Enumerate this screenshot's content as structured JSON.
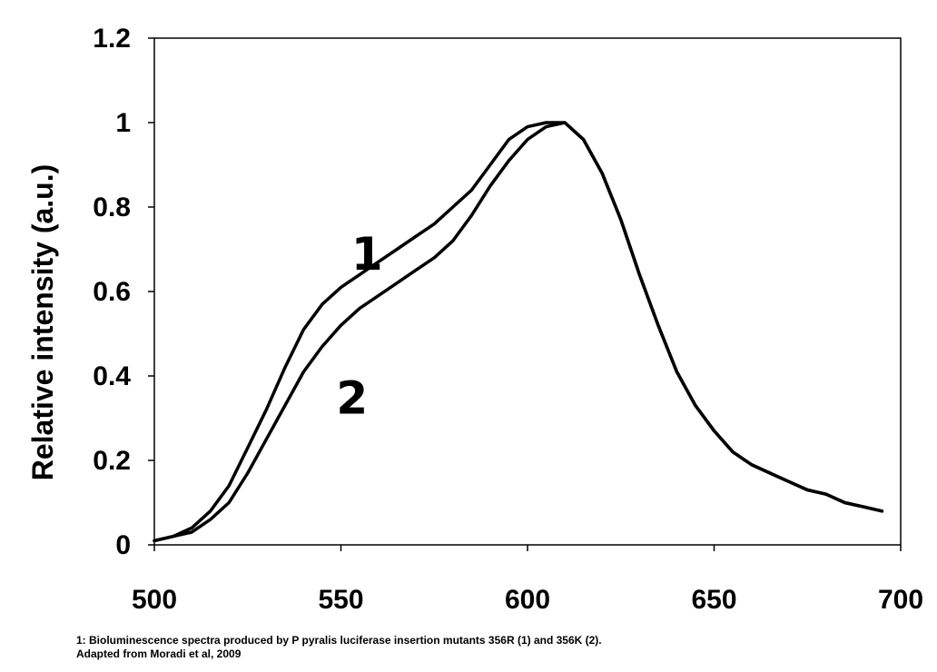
{
  "chart_data": {
    "type": "line",
    "title": "",
    "xlabel": "",
    "ylabel": "Relative intensity (a.u.)",
    "xlim": [
      500,
      700
    ],
    "ylim": [
      0,
      1.2
    ],
    "xticks": [
      500,
      550,
      600,
      650,
      700
    ],
    "yticks": [
      0,
      0.2,
      0.4,
      0.6,
      0.8,
      1,
      1.2
    ],
    "xtick_labels": [
      "500",
      "550",
      "600",
      "650",
      "700"
    ],
    "ytick_labels": [
      "0",
      "0.2",
      "0.4",
      "0.6",
      "0.8",
      "1",
      "1.2"
    ],
    "grid": false,
    "series": [
      {
        "name": "1",
        "label": "1",
        "label_at": [
          557,
          0.69
        ],
        "x": [
          500,
          505,
          510,
          515,
          520,
          525,
          530,
          535,
          540,
          545,
          550,
          555,
          560,
          565,
          570,
          575,
          580,
          585,
          590,
          595,
          600,
          605,
          610,
          615,
          620,
          625,
          630,
          635,
          640,
          645,
          650,
          655,
          660,
          665,
          670,
          675,
          680,
          685,
          690,
          695
        ],
        "y": [
          0.01,
          0.02,
          0.04,
          0.08,
          0.14,
          0.23,
          0.32,
          0.42,
          0.51,
          0.57,
          0.61,
          0.64,
          0.67,
          0.7,
          0.73,
          0.76,
          0.8,
          0.84,
          0.9,
          0.96,
          0.99,
          1.0,
          1.0,
          0.96,
          0.88,
          0.77,
          0.64,
          0.52,
          0.41,
          0.33,
          0.27,
          0.22,
          0.19,
          0.17,
          0.15,
          0.13,
          0.12,
          0.1,
          0.09,
          0.08
        ]
      },
      {
        "name": "2",
        "label": "2",
        "label_at": [
          553,
          0.35
        ],
        "x": [
          500,
          505,
          510,
          515,
          520,
          525,
          530,
          535,
          540,
          545,
          550,
          555,
          560,
          565,
          570,
          575,
          580,
          585,
          590,
          595,
          600,
          605,
          610,
          615,
          620,
          625,
          630,
          635,
          640,
          645,
          650,
          655,
          660,
          665,
          670,
          675,
          680,
          685,
          690,
          695
        ],
        "y": [
          0.01,
          0.02,
          0.03,
          0.06,
          0.1,
          0.17,
          0.25,
          0.33,
          0.41,
          0.47,
          0.52,
          0.56,
          0.59,
          0.62,
          0.65,
          0.68,
          0.72,
          0.78,
          0.85,
          0.91,
          0.96,
          0.99,
          1.0,
          0.96,
          0.88,
          0.77,
          0.64,
          0.52,
          0.41,
          0.33,
          0.27,
          0.22,
          0.19,
          0.17,
          0.15,
          0.13,
          0.12,
          0.1,
          0.09,
          0.08
        ]
      }
    ]
  },
  "caption": {
    "line1": "1: Bioluminescence spectra produced by P pyralis luciferase insertion mutants 356R (1) and 356K (2).",
    "line2": "Adapted from Moradi et al, 2009"
  }
}
